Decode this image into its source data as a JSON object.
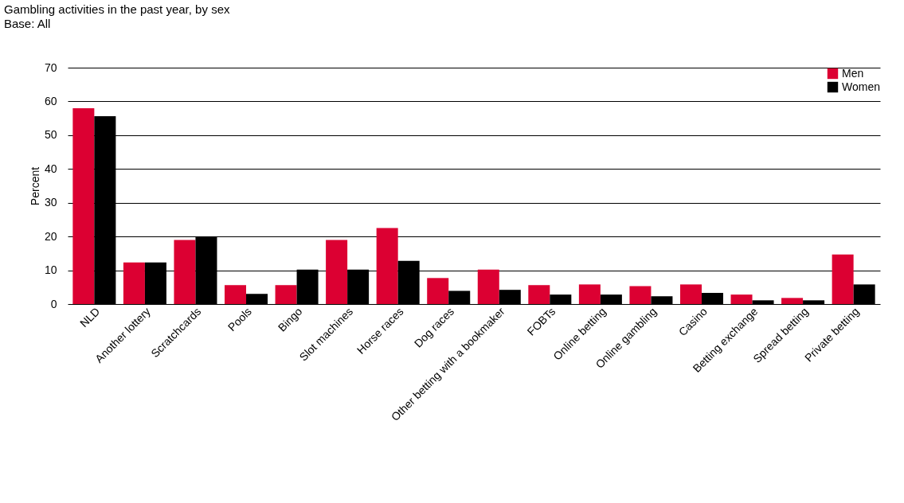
{
  "chart_data": {
    "type": "bar",
    "title": "Gambling activities in the past year, by sex",
    "subtitle": "Base: All",
    "ylabel": "Percent",
    "categories": [
      "NLD",
      "Another lottery",
      "Scratchcards",
      "Pools",
      "Bingo",
      "Slot machines",
      "Horse races",
      "Dog races",
      "Other betting with a bookmaker",
      "FOBTs",
      "Online betting",
      "Online gambling",
      "Casino",
      "Betting exchange",
      "Spread betting",
      "Private betting"
    ],
    "series": [
      {
        "name": "Men",
        "color": "#dc0032",
        "values": [
          58,
          12.3,
          19,
          5.6,
          5.6,
          19,
          22.5,
          7.7,
          10.2,
          5.6,
          5.8,
          5.3,
          5.8,
          2.8,
          1.8,
          14.7
        ]
      },
      {
        "name": "Women",
        "color": "#000000",
        "values": [
          55.6,
          12.3,
          20,
          3,
          10.2,
          10.2,
          12.8,
          3.9,
          4.2,
          2.8,
          2.8,
          2.3,
          3.3,
          1.1,
          1.1,
          5.8
        ]
      }
    ],
    "ylim": [
      0,
      70
    ],
    "yticks": [
      0,
      10,
      20,
      30,
      40,
      50,
      60,
      70
    ],
    "grid": "y",
    "legend": "top right"
  }
}
